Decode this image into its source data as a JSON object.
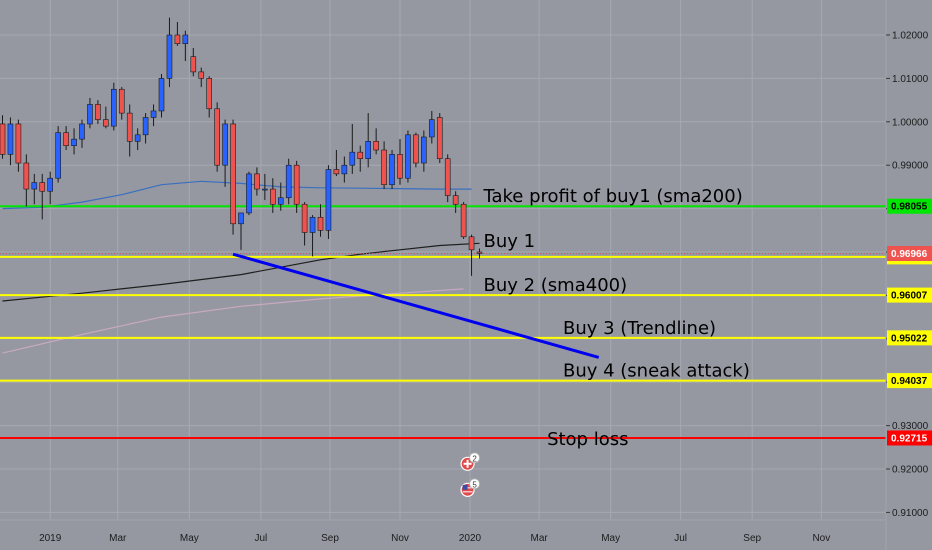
{
  "chart_data": {
    "type": "candlestick",
    "instrument_note": "weekly candles",
    "colors": {
      "background": "#9598a1",
      "grid": "#a6a9b1",
      "up": "#2962ff",
      "down": "#ef5350",
      "sma_blue": "#3a6fc0",
      "sma_black": "#1f1f1f",
      "sma_pink": "#c9a9c0",
      "take_profit_line": "#00e600",
      "buy_lines": "#ffff00",
      "stop_line": "#ff0000",
      "trendline": "#0000ee"
    },
    "y_axis": {
      "range": [
        0.9085,
        1.0285
      ],
      "ticks": [
        "1.02000",
        "1.01000",
        "1.00000",
        "0.99000",
        "0.98000",
        "0.97000",
        "0.96000",
        "0.95000",
        "0.94000",
        "0.93000",
        "0.92000",
        "0.91000"
      ],
      "tick_values": [
        1.02,
        1.01,
        1.0,
        0.99,
        0.98,
        0.97,
        0.96,
        0.95,
        0.94,
        0.93,
        0.92,
        0.91
      ]
    },
    "x_axis": {
      "ticks": [
        {
          "label": "2019",
          "week": 6.0
        },
        {
          "label": "Mar",
          "week": 14.5
        },
        {
          "label": "May",
          "week": 23.5
        },
        {
          "label": "Jul",
          "week": 32.5
        },
        {
          "label": "Sep",
          "week": 41.2
        },
        {
          "label": "Nov",
          "week": 50.0
        },
        {
          "label": "2020",
          "week": 58.8
        },
        {
          "label": "Mar",
          "week": 67.5
        },
        {
          "label": "May",
          "week": 76.5
        },
        {
          "label": "Jul",
          "week": 85.3
        },
        {
          "label": "Sep",
          "week": 94.3
        },
        {
          "label": "Nov",
          "week": 103.0
        }
      ]
    },
    "candles": [
      {
        "w": 0,
        "o": 0.9995,
        "h": 1.0015,
        "l": 0.9915,
        "c": 0.9925
      },
      {
        "w": 1,
        "o": 0.9925,
        "h": 1.001,
        "l": 0.99,
        "c": 0.9995
      },
      {
        "w": 2,
        "o": 0.9995,
        "h": 1.0005,
        "l": 0.9885,
        "c": 0.9905
      },
      {
        "w": 3,
        "o": 0.9905,
        "h": 0.9925,
        "l": 0.9805,
        "c": 0.9845
      },
      {
        "w": 4,
        "o": 0.9845,
        "h": 0.988,
        "l": 0.981,
        "c": 0.986
      },
      {
        "w": 5,
        "o": 0.986,
        "h": 0.988,
        "l": 0.9775,
        "c": 0.984
      },
      {
        "w": 6,
        "o": 0.984,
        "h": 0.9885,
        "l": 0.981,
        "c": 0.987
      },
      {
        "w": 7,
        "o": 0.987,
        "h": 0.999,
        "l": 0.986,
        "c": 0.9975
      },
      {
        "w": 8,
        "o": 0.9975,
        "h": 0.999,
        "l": 0.9935,
        "c": 0.9945
      },
      {
        "w": 9,
        "o": 0.9945,
        "h": 0.9985,
        "l": 0.9925,
        "c": 0.996
      },
      {
        "w": 10,
        "o": 0.996,
        "h": 1.0005,
        "l": 0.994,
        "c": 0.9995
      },
      {
        "w": 11,
        "o": 0.9995,
        "h": 1.0055,
        "l": 0.9985,
        "c": 1.004
      },
      {
        "w": 12,
        "o": 1.004,
        "h": 1.005,
        "l": 0.9995,
        "c": 1.0005
      },
      {
        "w": 13,
        "o": 1.0005,
        "h": 1.0035,
        "l": 0.9985,
        "c": 0.999
      },
      {
        "w": 14,
        "o": 0.999,
        "h": 1.009,
        "l": 0.998,
        "c": 1.0075
      },
      {
        "w": 15,
        "o": 1.0075,
        "h": 1.008,
        "l": 1.0005,
        "c": 1.002
      },
      {
        "w": 16,
        "o": 1.002,
        "h": 1.004,
        "l": 0.992,
        "c": 0.9955
      },
      {
        "w": 17,
        "o": 0.9955,
        "h": 0.9985,
        "l": 0.9935,
        "c": 0.997
      },
      {
        "w": 18,
        "o": 0.997,
        "h": 1.002,
        "l": 0.995,
        "c": 1.001
      },
      {
        "w": 19,
        "o": 1.001,
        "h": 1.004,
        "l": 0.999,
        "c": 1.0025
      },
      {
        "w": 20,
        "o": 1.0025,
        "h": 1.011,
        "l": 1.001,
        "c": 1.01
      },
      {
        "w": 21,
        "o": 1.01,
        "h": 1.024,
        "l": 1.008,
        "c": 1.02
      },
      {
        "w": 22,
        "o": 1.02,
        "h": 1.023,
        "l": 1.0175,
        "c": 1.018
      },
      {
        "w": 23,
        "o": 1.018,
        "h": 1.021,
        "l": 1.014,
        "c": 1.02
      },
      {
        "w": 24,
        "o": 1.015,
        "h": 1.017,
        "l": 1.0105,
        "c": 1.0115
      },
      {
        "w": 25,
        "o": 1.0115,
        "h": 1.0125,
        "l": 1.008,
        "c": 1.01
      },
      {
        "w": 26,
        "o": 1.01,
        "h": 1.0105,
        "l": 1.001,
        "c": 1.003
      },
      {
        "w": 27,
        "o": 1.003,
        "h": 1.0045,
        "l": 0.9885,
        "c": 0.99
      },
      {
        "w": 28,
        "o": 0.99,
        "h": 1.0005,
        "l": 0.985,
        "c": 0.9995
      },
      {
        "w": 29,
        "o": 0.9995,
        "h": 1.0005,
        "l": 0.974,
        "c": 0.9765
      },
      {
        "w": 30,
        "o": 0.9765,
        "h": 0.979,
        "l": 0.9705,
        "c": 0.979
      },
      {
        "w": 31,
        "o": 0.979,
        "h": 0.9885,
        "l": 0.9785,
        "c": 0.988
      },
      {
        "w": 32,
        "o": 0.988,
        "h": 0.9895,
        "l": 0.983,
        "c": 0.9845
      },
      {
        "w": 33,
        "o": 0.9845,
        "h": 0.988,
        "l": 0.982,
        "c": 0.9845
      },
      {
        "w": 34,
        "o": 0.9845,
        "h": 0.987,
        "l": 0.979,
        "c": 0.981
      },
      {
        "w": 35,
        "o": 0.981,
        "h": 0.986,
        "l": 0.9795,
        "c": 0.9825
      },
      {
        "w": 36,
        "o": 0.9825,
        "h": 0.9915,
        "l": 0.981,
        "c": 0.99
      },
      {
        "w": 37,
        "o": 0.99,
        "h": 0.991,
        "l": 0.979,
        "c": 0.981
      },
      {
        "w": 38,
        "o": 0.981,
        "h": 0.9815,
        "l": 0.9715,
        "c": 0.9745
      },
      {
        "w": 39,
        "o": 0.9745,
        "h": 0.9785,
        "l": 0.969,
        "c": 0.978
      },
      {
        "w": 40,
        "o": 0.978,
        "h": 0.981,
        "l": 0.9735,
        "c": 0.975
      },
      {
        "w": 41,
        "o": 0.975,
        "h": 0.99,
        "l": 0.973,
        "c": 0.989
      },
      {
        "w": 42,
        "o": 0.989,
        "h": 0.9935,
        "l": 0.9875,
        "c": 0.988
      },
      {
        "w": 43,
        "o": 0.988,
        "h": 0.992,
        "l": 0.986,
        "c": 0.99
      },
      {
        "w": 44,
        "o": 0.99,
        "h": 0.9995,
        "l": 0.988,
        "c": 0.993
      },
      {
        "w": 45,
        "o": 0.993,
        "h": 0.9945,
        "l": 0.9885,
        "c": 0.9915
      },
      {
        "w": 46,
        "o": 0.9915,
        "h": 1.002,
        "l": 0.9895,
        "c": 0.9955
      },
      {
        "w": 47,
        "o": 0.9955,
        "h": 0.9985,
        "l": 0.9925,
        "c": 0.9935
      },
      {
        "w": 48,
        "o": 0.9935,
        "h": 0.9955,
        "l": 0.9845,
        "c": 0.9855
      },
      {
        "w": 49,
        "o": 0.9855,
        "h": 0.9935,
        "l": 0.9845,
        "c": 0.9925
      },
      {
        "w": 50,
        "o": 0.9925,
        "h": 0.996,
        "l": 0.9855,
        "c": 0.987
      },
      {
        "w": 51,
        "o": 0.987,
        "h": 0.998,
        "l": 0.986,
        "c": 0.997
      },
      {
        "w": 52,
        "o": 0.997,
        "h": 0.9975,
        "l": 0.9895,
        "c": 0.9905
      },
      {
        "w": 53,
        "o": 0.9905,
        "h": 0.998,
        "l": 0.9885,
        "c": 0.9965
      },
      {
        "w": 54,
        "o": 0.9965,
        "h": 1.0025,
        "l": 0.995,
        "c": 1.0005
      },
      {
        "w": 55,
        "o": 1.001,
        "h": 1.002,
        "l": 0.9905,
        "c": 0.9915
      },
      {
        "w": 56,
        "o": 0.9915,
        "h": 0.9925,
        "l": 0.9815,
        "c": 0.983
      },
      {
        "w": 57,
        "o": 0.983,
        "h": 0.984,
        "l": 0.979,
        "c": 0.981
      },
      {
        "w": 58,
        "o": 0.981,
        "h": 0.9815,
        "l": 0.973,
        "c": 0.9735
      },
      {
        "w": 59,
        "o": 0.9735,
        "h": 0.974,
        "l": 0.9645,
        "c": 0.9705
      },
      {
        "w": 60,
        "o": 0.97,
        "h": 0.9708,
        "l": 0.9685,
        "c": 0.9697
      }
    ],
    "sma_blue": [
      [
        0,
        0.98
      ],
      [
        5,
        0.9803
      ],
      [
        10,
        0.9815
      ],
      [
        15,
        0.9832
      ],
      [
        20,
        0.9855
      ],
      [
        25,
        0.9863
      ],
      [
        30,
        0.9858
      ],
      [
        35,
        0.985
      ],
      [
        40,
        0.9848
      ],
      [
        45,
        0.9847
      ],
      [
        50,
        0.9846
      ],
      [
        55,
        0.9845
      ],
      [
        59,
        0.9845
      ]
    ],
    "sma_black": [
      [
        0,
        0.9587
      ],
      [
        10,
        0.9605
      ],
      [
        20,
        0.9625
      ],
      [
        30,
        0.9648
      ],
      [
        35,
        0.9665
      ],
      [
        40,
        0.9682
      ],
      [
        45,
        0.9695
      ],
      [
        50,
        0.9705
      ],
      [
        55,
        0.9715
      ],
      [
        60,
        0.972
      ]
    ],
    "sma_pink": [
      [
        0,
        0.9467
      ],
      [
        10,
        0.951
      ],
      [
        20,
        0.955
      ],
      [
        30,
        0.9575
      ],
      [
        40,
        0.9592
      ],
      [
        50,
        0.9605
      ],
      [
        58,
        0.9615
      ]
    ],
    "trendline": {
      "from": [
        29,
        0.9695
      ],
      "to": [
        75,
        0.9457
      ]
    },
    "levels": [
      {
        "value": 0.98055,
        "label": "0.98055",
        "color": "#00e600",
        "text": "Take profit of buy1 (sma200)",
        "text_week": 60.5,
        "text_offset": -4
      },
      {
        "value": 0.96888,
        "label": "0.96888",
        "color": "#ffff00",
        "text": "Buy 1",
        "text_week": 60.5,
        "text_offset": -10
      },
      {
        "value": 0.96007,
        "label": "0.96007",
        "color": "#ffff00",
        "text": "Buy 2 (sma400)",
        "text_week": 60.5,
        "text_offset": -4
      },
      {
        "value": 0.95022,
        "label": "0.95022",
        "color": "#ffff00",
        "text": "Buy 3 (Trendline)",
        "text_week": 70.5,
        "text_offset": -4
      },
      {
        "value": 0.94037,
        "label": "0.94037",
        "color": "#ffff00",
        "text": "Buy 4 (sneak attack)",
        "text_week": 70.5,
        "text_offset": -4
      },
      {
        "value": 0.92715,
        "label": "0.92715",
        "color": "#ff0000",
        "text": "Stop loss",
        "text_week": 68.5,
        "text_offset": 7
      }
    ],
    "last_price": {
      "value": 0.96966,
      "label": "0.96966",
      "color": "#ef5350"
    },
    "event_markers": [
      {
        "week": 58.5,
        "value": 0.9212,
        "badge": "2",
        "flag": "swiss-flag-icon"
      },
      {
        "week": 58.5,
        "value": 0.9152,
        "badge": "5",
        "flag": "us-flag-icon"
      }
    ]
  }
}
